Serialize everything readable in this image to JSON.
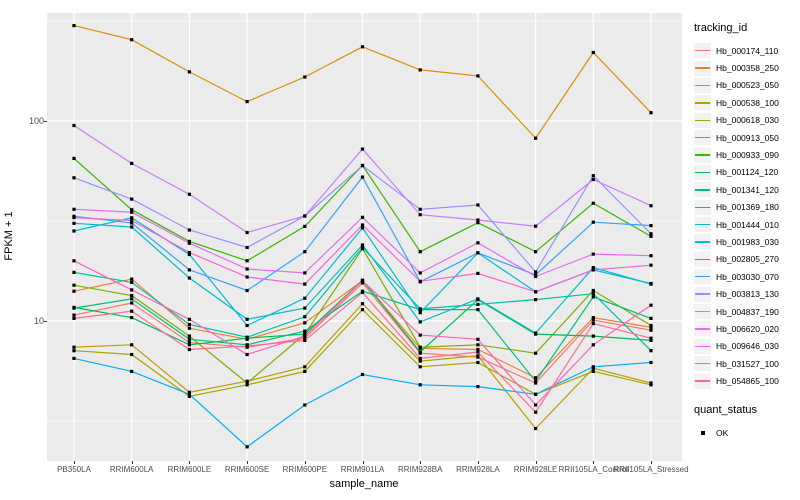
{
  "chart_data": {
    "type": "line",
    "title": "",
    "xlabel": "sample_name",
    "ylabel": "FPKM + 1",
    "y_scale": "log10",
    "y_major_ticks": [
      10,
      100
    ],
    "y_minor_ticks": [
      3.16,
      31.6,
      316
    ],
    "ylim": [
      2.0,
      343
    ],
    "grid": "on",
    "panel_background": "#EBEBEB",
    "grid_color": "#FFFFFF",
    "point_color": "#000000",
    "legend_position": "right",
    "legend_title": "tracking_id",
    "legend2_title": "quant_status",
    "legend2_items": [
      "OK"
    ],
    "categories": [
      "PB350LA",
      "RRIM600LA",
      "RRIM600LE",
      "RRIM600SE",
      "RRIM600PE",
      "RRIM901LA",
      "RRIM928BA",
      "RRIM928LA",
      "RRIM928LE",
      "RRII105LA_Control",
      "RRII105LA_Stressed"
    ],
    "series": [
      {
        "name": "Hb_000174_110",
        "color": "#F8766D",
        "values": [
          10.7,
          12.3,
          7.8,
          7.4,
          8.2,
          15.5,
          6.9,
          6.6,
          4.9,
          10.1,
          9.0
        ]
      },
      {
        "name": "Hb_000358_250",
        "color": "#EA8331",
        "values": [
          14.1,
          16.2,
          9.2,
          8.1,
          9.8,
          15.9,
          7.3,
          7.2,
          5.2,
          10.4,
          9.3
        ]
      },
      {
        "name": "Hb_000523_050",
        "color": "#D89000",
        "values": [
          300,
          255,
          176,
          125,
          166,
          235,
          180,
          168,
          82,
          220,
          110
        ]
      },
      {
        "name": "Hb_000538_100",
        "color": "#C09B00",
        "values": [
          7.4,
          7.6,
          4.4,
          5.0,
          5.9,
          12.2,
          6.3,
          6.7,
          2.9,
          5.8,
          4.9
        ]
      },
      {
        "name": "Hb_000618_030",
        "color": "#A3A500",
        "values": [
          7.1,
          6.8,
          4.2,
          4.8,
          5.6,
          11.4,
          5.9,
          6.2,
          4.3,
          5.6,
          4.8
        ]
      },
      {
        "name": "Hb_000913_050",
        "color": "#7CAE00",
        "values": [
          15.1,
          13.4,
          8.4,
          4.9,
          8.6,
          23.0,
          7.4,
          7.6,
          6.9,
          14.2,
          9.5
        ]
      },
      {
        "name": "Hb_000933_090",
        "color": "#39B600",
        "values": [
          65,
          36,
          25,
          20,
          29.7,
          60,
          22.2,
          31,
          22.2,
          38.8,
          26.5
        ]
      },
      {
        "name": "Hb_001124_120",
        "color": "#00BB4E",
        "values": [
          11.7,
          10.4,
          7.6,
          8.2,
          8.6,
          16.0,
          7.0,
          12.8,
          8.6,
          8.4,
          8.0
        ]
      },
      {
        "name": "Hb_001341_120",
        "color": "#00BF7D",
        "values": [
          11.6,
          12.9,
          8.1,
          7.6,
          8.9,
          14.1,
          11.4,
          11.4,
          5.0,
          13.2,
          10.3
        ]
      },
      {
        "name": "Hb_001369_180",
        "color": "#00C1A3",
        "values": [
          17.5,
          15.6,
          9.6,
          8.3,
          10.5,
          23.3,
          11.5,
          12.1,
          12.8,
          13.7,
          7.1
        ]
      },
      {
        "name": "Hb_001444_010",
        "color": "#00BFC4",
        "values": [
          30.8,
          29.5,
          16.4,
          10.2,
          11.6,
          24.0,
          9.9,
          12.9,
          8.7,
          18.5,
          15.3
        ]
      },
      {
        "name": "Hb_001983_030",
        "color": "#00BAE0",
        "values": [
          28.2,
          32.8,
          21.5,
          9.5,
          13.0,
          29.2,
          11.0,
          21.9,
          14.0,
          18.0,
          15.4
        ]
      },
      {
        "name": "Hb_002805_270",
        "color": "#00B0F6",
        "values": [
          6.5,
          5.6,
          4.3,
          2.35,
          3.8,
          5.4,
          4.8,
          4.7,
          4.3,
          5.9,
          6.2
        ]
      },
      {
        "name": "Hb_003030_070",
        "color": "#35A2FF",
        "values": [
          33.4,
          30.9,
          18.0,
          14.2,
          22.2,
          52.4,
          15.7,
          21.9,
          17.0,
          31.2,
          30.0
        ]
      },
      {
        "name": "Hb_003813_130",
        "color": "#9590FF",
        "values": [
          52,
          40.7,
          28.5,
          23.3,
          33.5,
          59.8,
          36.2,
          38.0,
          17.6,
          53.3,
          27.3
        ]
      },
      {
        "name": "Hb_004837_190",
        "color": "#C77CFF",
        "values": [
          95,
          61.4,
          43,
          27.7,
          33.5,
          72.4,
          34.0,
          32.0,
          29.8,
          51.0,
          37.7
        ]
      },
      {
        "name": "Hb_006620_020",
        "color": "#E76BF3",
        "values": [
          36.2,
          35.0,
          24.5,
          18.2,
          17.4,
          33.0,
          17.4,
          24.6,
          16.7,
          21.6,
          21.2
        ]
      },
      {
        "name": "Hb_009646_030",
        "color": "#FA62DB",
        "values": [
          32.9,
          31.8,
          22.0,
          16.6,
          15.3,
          30.2,
          15.8,
          17.3,
          14.0,
          18.0,
          19.0
        ]
      },
      {
        "name": "Hb_031527_100",
        "color": "#FF62BC",
        "values": [
          20.0,
          14.3,
          10.2,
          6.8,
          8.4,
          15.9,
          8.5,
          8.1,
          3.8,
          7.6,
          12.0
        ]
      },
      {
        "name": "Hb_054865_100",
        "color": "#FF6A98",
        "values": [
          10.3,
          11.2,
          7.2,
          7.5,
          8.0,
          13.9,
          6.5,
          7.0,
          3.5,
          9.7,
          8.2
        ]
      }
    ]
  }
}
